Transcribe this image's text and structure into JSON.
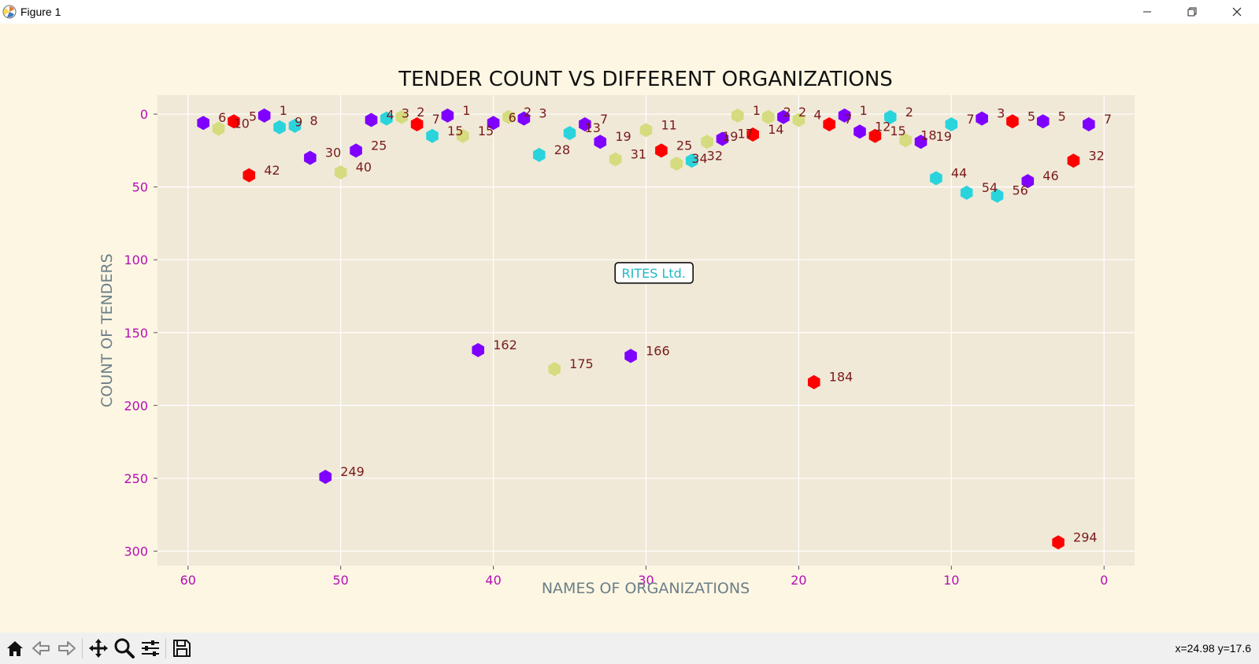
{
  "window": {
    "title": "Figure 1"
  },
  "status": {
    "coords": "x=24.98 y=17.6"
  },
  "colors": {
    "figure_bg": "#fdf6e3",
    "axes_bg": "#f0e9d8",
    "grid": "#ffffff",
    "tick_text": "#b50fb5",
    "label_text": "#6b7f87",
    "annotation_text": "#7a1a1a",
    "purple": "#7f00ff",
    "red": "#ff0000",
    "cyan": "#2ad4dc",
    "khaki": "#d4dc7f",
    "box_text": "#22b7c4"
  },
  "toolbar": {
    "icons": [
      "home-icon",
      "back-arrow-icon",
      "forward-arrow-icon",
      "pan-icon",
      "zoom-icon",
      "configure-subplots-icon",
      "save-icon"
    ]
  },
  "chart_data": {
    "type": "scatter",
    "title": "TENDER COUNT VS DIFFERENT ORGANIZATIONS",
    "xlabel": "NAMES OF ORGANIZATIONS",
    "ylabel": "COUNT OF TENDERS",
    "xlim": [
      62,
      -2
    ],
    "ylim": [
      310,
      -13
    ],
    "x_inverted": true,
    "y_inverted": true,
    "grid": true,
    "x_ticks": [
      60,
      50,
      40,
      30,
      20,
      10,
      0
    ],
    "y_ticks": [
      0,
      50,
      100,
      150,
      200,
      250,
      300
    ],
    "marker": "hexagon",
    "annotation_box": {
      "text": "RITES Ltd.",
      "x": 29.5,
      "y": 109
    },
    "points": [
      {
        "x": 59,
        "y": 6,
        "label": "6",
        "color": "purple"
      },
      {
        "x": 58,
        "y": 10,
        "label": "10",
        "color": "khaki"
      },
      {
        "x": 57,
        "y": 5,
        "label": "5",
        "color": "red"
      },
      {
        "x": 56,
        "y": 42,
        "label": "42",
        "color": "red"
      },
      {
        "x": 55,
        "y": 1,
        "label": "1",
        "color": "purple"
      },
      {
        "x": 54,
        "y": 9,
        "label": "9",
        "color": "cyan"
      },
      {
        "x": 53,
        "y": 8,
        "label": "8",
        "color": "cyan"
      },
      {
        "x": 52,
        "y": 30,
        "label": "30",
        "color": "purple"
      },
      {
        "x": 51,
        "y": 249,
        "label": "249",
        "color": "purple"
      },
      {
        "x": 50,
        "y": 40,
        "label": "40",
        "color": "khaki"
      },
      {
        "x": 49,
        "y": 25,
        "label": "25",
        "color": "purple"
      },
      {
        "x": 48,
        "y": 4,
        "label": "4",
        "color": "purple"
      },
      {
        "x": 47,
        "y": 3,
        "label": "3",
        "color": "cyan"
      },
      {
        "x": 46,
        "y": 2,
        "label": "2",
        "color": "khaki"
      },
      {
        "x": 45,
        "y": 7,
        "label": "7",
        "color": "red"
      },
      {
        "x": 44,
        "y": 15,
        "label": "15",
        "color": "cyan"
      },
      {
        "x": 43,
        "y": 1,
        "label": "1",
        "color": "purple"
      },
      {
        "x": 42,
        "y": 15,
        "label": "15",
        "color": "khaki"
      },
      {
        "x": 41,
        "y": 162,
        "label": "162",
        "color": "purple"
      },
      {
        "x": 40,
        "y": 6,
        "label": "6",
        "color": "purple"
      },
      {
        "x": 39,
        "y": 2,
        "label": "2",
        "color": "khaki"
      },
      {
        "x": 38,
        "y": 3,
        "label": "3",
        "color": "purple"
      },
      {
        "x": 37,
        "y": 28,
        "label": "28",
        "color": "cyan"
      },
      {
        "x": 36,
        "y": 175,
        "label": "175",
        "color": "khaki"
      },
      {
        "x": 35,
        "y": 13,
        "label": "13",
        "color": "cyan"
      },
      {
        "x": 34,
        "y": 7,
        "label": "7",
        "color": "purple"
      },
      {
        "x": 33,
        "y": 19,
        "label": "19",
        "color": "purple"
      },
      {
        "x": 32,
        "y": 31,
        "label": "31",
        "color": "khaki"
      },
      {
        "x": 31,
        "y": 166,
        "label": "166",
        "color": "purple"
      },
      {
        "x": 30,
        "y": 11,
        "label": "11",
        "color": "khaki"
      },
      {
        "x": 29,
        "y": 25,
        "label": "25",
        "color": "red"
      },
      {
        "x": 28,
        "y": 34,
        "label": "34",
        "color": "khaki"
      },
      {
        "x": 27,
        "y": 32,
        "label": "32",
        "color": "cyan"
      },
      {
        "x": 26,
        "y": 19,
        "label": "19",
        "color": "khaki"
      },
      {
        "x": 25,
        "y": 17,
        "label": "17",
        "color": "purple"
      },
      {
        "x": 24,
        "y": 1,
        "label": "1",
        "color": "khaki"
      },
      {
        "x": 23,
        "y": 14,
        "label": "14",
        "color": "red"
      },
      {
        "x": 22,
        "y": 2,
        "label": "2",
        "color": "khaki"
      },
      {
        "x": 21,
        "y": 2,
        "label": "2",
        "color": "purple"
      },
      {
        "x": 20,
        "y": 4,
        "label": "4",
        "color": "khaki"
      },
      {
        "x": 19,
        "y": 184,
        "label": "184",
        "color": "red"
      },
      {
        "x": 18,
        "y": 7,
        "label": "7",
        "color": "red"
      },
      {
        "x": 17,
        "y": 1,
        "label": "1",
        "color": "purple"
      },
      {
        "x": 16,
        "y": 12,
        "label": "12",
        "color": "purple"
      },
      {
        "x": 15,
        "y": 15,
        "label": "15",
        "color": "red"
      },
      {
        "x": 14,
        "y": 2,
        "label": "2",
        "color": "cyan"
      },
      {
        "x": 13,
        "y": 18,
        "label": "18",
        "color": "khaki"
      },
      {
        "x": 12,
        "y": 19,
        "label": "19",
        "color": "purple"
      },
      {
        "x": 11,
        "y": 44,
        "label": "44",
        "color": "cyan"
      },
      {
        "x": 10,
        "y": 7,
        "label": "7",
        "color": "cyan"
      },
      {
        "x": 9,
        "y": 54,
        "label": "54",
        "color": "cyan"
      },
      {
        "x": 8,
        "y": 3,
        "label": "3",
        "color": "purple"
      },
      {
        "x": 7,
        "y": 56,
        "label": "56",
        "color": "cyan"
      },
      {
        "x": 6,
        "y": 5,
        "label": "5",
        "color": "red"
      },
      {
        "x": 5,
        "y": 46,
        "label": "46",
        "color": "purple"
      },
      {
        "x": 4,
        "y": 5,
        "label": "5",
        "color": "purple"
      },
      {
        "x": 3,
        "y": 294,
        "label": "294",
        "color": "red"
      },
      {
        "x": 2,
        "y": 32,
        "label": "32",
        "color": "red"
      },
      {
        "x": 1,
        "y": 7,
        "label": "7",
        "color": "purple"
      }
    ]
  }
}
